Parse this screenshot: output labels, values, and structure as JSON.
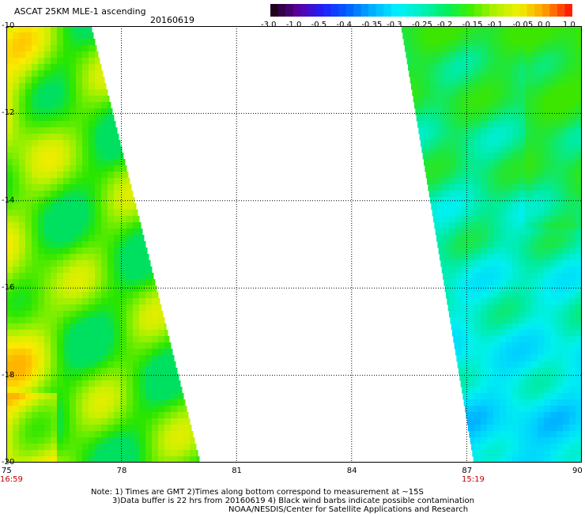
{
  "header": {
    "title": "ASCAT 25KM MLE-1 ascending",
    "date": "20160619"
  },
  "colorbar": {
    "labels": [
      "-3.0",
      "-1.0",
      "-0.5",
      "-0.4",
      "-0.35",
      "-0.3",
      "-0.25",
      "-0.2",
      "-0.15",
      "-0.1",
      "-0.05",
      "0.0",
      "1.0"
    ],
    "colors": [
      "#200020",
      "#5a00a0",
      "#2020ff",
      "#0060ff",
      "#00b0ff",
      "#00f0ff",
      "#00f0c0",
      "#00f060",
      "#40f000",
      "#b0f000",
      "#f0f000",
      "#ffa000",
      "#ff2000"
    ]
  },
  "map": {
    "lat_labels": [
      "-10",
      "-12",
      "-14",
      "-16",
      "-18",
      "-20"
    ],
    "lon_labels": [
      "75",
      "78",
      "81",
      "84",
      "87",
      "90"
    ],
    "time_left": "16:59",
    "time_right": "15:19"
  },
  "notes": {
    "line1": "Note: 1) Times are GMT 2)Times along bottom correspond to measurement at ~15S",
    "line2": "3)Data buffer is 22 hrs from 20160619 4) Black wind barbs indicate possible contamination",
    "line3": "NOAA/NESDIS/Center for Satellite Applications and Research"
  }
}
